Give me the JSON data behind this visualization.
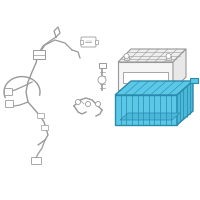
{
  "background_color": "#ffffff",
  "border_color": "#cccccc",
  "tray_fill": "#5bc8e8",
  "tray_edge": "#2a8aaa",
  "tray_inner": "#4ab8d8",
  "parts_color": "#999999",
  "battery_fill": "#f8f8f8",
  "battery_edge": "#999999",
  "figsize": [
    2.0,
    2.0
  ],
  "dpi": 100
}
